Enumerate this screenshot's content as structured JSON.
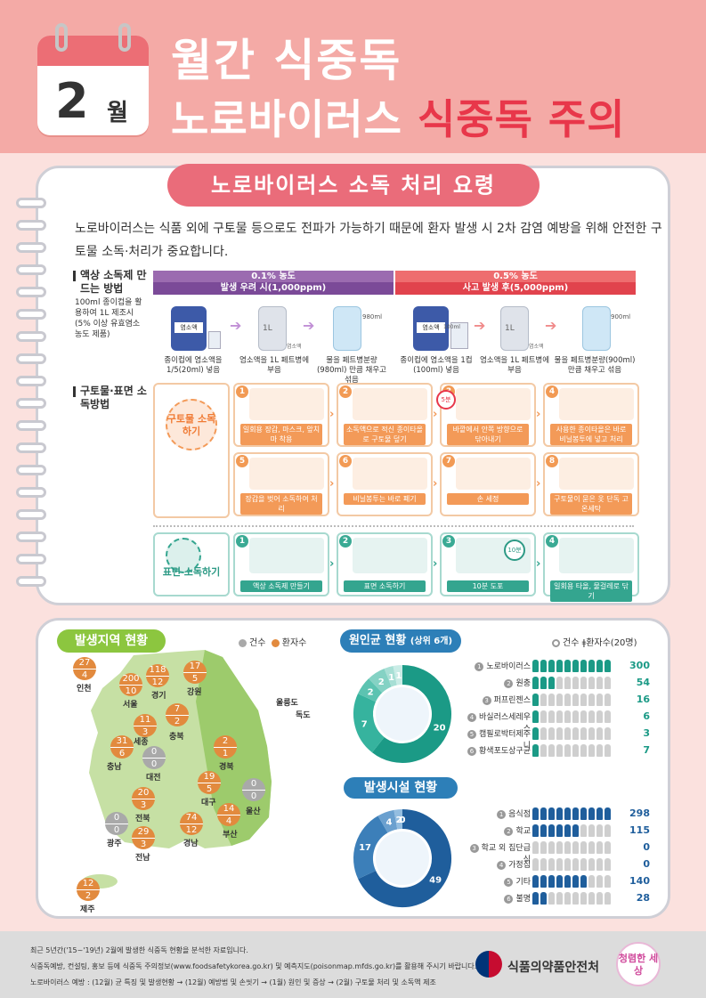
{
  "header": {
    "month_num": "2",
    "month_unit": "월",
    "title_line1": "월간 식중독",
    "title_line2_a": "노로바이러스 ",
    "title_line2_b": "식중독 주의"
  },
  "banner": "노로바이러스 소독 처리 요령",
  "intro": "노로바이러스는 식품 외에 구토물 등으로도 전파가 가능하기 때문에 환자 발생 시 2차 감염 예방을 위해 안전한 구토물 소독·처리가 중요합니다.",
  "liquid": {
    "title": "액상 소독제 만드는 방법",
    "note": "100ml 종이컵을 활용하여 1L 제조시 (5% 이상 유효염소 농도 제품)",
    "left_conc": "0.1% 농도",
    "left_use": "발생 우려 시(1,000ppm)",
    "right_conc": "0.5% 농도",
    "right_use": "사고 발생 후(5,000ppm)",
    "bottle_label": "염소액",
    "left_steps": [
      "종이컵에 염소액을 1/5(20ml) 넣음",
      "염소액을 1L 페트병에 부음",
      "물을 페트병분량(980ml) 만큼 채우고 섞음"
    ],
    "right_steps": [
      "종이컵에 염소액을 1컵(100ml) 넣음",
      "염소액을 1L 페트병에 부음",
      "물을 페트병분량(900ml) 만큼 채우고 섞음"
    ],
    "left_ml": "980ml",
    "right_ml": "900ml",
    "cup_ml": "100ml",
    "liter": "1L",
    "small_label": "염소액"
  },
  "surface": {
    "title": "구토물·표면 소독방법",
    "vomit_group": "구토물 소독하기",
    "vomit_steps": [
      {
        "n": "1",
        "label": "일회용 장갑, 마스크, 앞치마 착용"
      },
      {
        "n": "2",
        "label": "소독액으로 적신 종이타올로 구토물 덮기"
      },
      {
        "n": "3",
        "label": "바깥에서 안쪽 방향으로 닦아내기"
      },
      {
        "n": "4",
        "label": "사용한 종이타올은 바로 비닐봉투에 넣고 처리"
      },
      {
        "n": "5",
        "label": "장갑을 벗어 소독하여 처리"
      },
      {
        "n": "6",
        "label": "비닐봉투는 바로 폐기"
      },
      {
        "n": "7",
        "label": "손 세정"
      },
      {
        "n": "8",
        "label": "구토물이 묻은 옷 단독 고온세탁"
      }
    ],
    "timer5": "5분",
    "surface_group": "표면 소독하기",
    "surface_steps": [
      {
        "n": "1",
        "label": "액상 소독제 만들기"
      },
      {
        "n": "2",
        "label": "표면 소독하기"
      },
      {
        "n": "3",
        "label": "10분 도포"
      },
      {
        "n": "4",
        "label": "일회용 타올, 물걸레로 닦기"
      }
    ],
    "timer10": "10분"
  },
  "region": {
    "title": "발생지역 현황",
    "legend_cases": "건수",
    "legend_patients": "환자수",
    "markers": [
      {
        "name": "인천",
        "a": "27",
        "b": "4",
        "color": "orange"
      },
      {
        "name": "서울",
        "a": "200",
        "b": "10",
        "color": "orange"
      },
      {
        "name": "경기",
        "a": "118",
        "b": "12",
        "color": "orange"
      },
      {
        "name": "강원",
        "a": "17",
        "b": "5",
        "color": "orange"
      },
      {
        "name": "세종",
        "a": "11",
        "b": "3",
        "color": "orange"
      },
      {
        "name": "충북",
        "a": "7",
        "b": "2",
        "color": "orange"
      },
      {
        "name": "충남",
        "a": "31",
        "b": "6",
        "color": "orange"
      },
      {
        "name": "대전",
        "a": "0",
        "b": "0",
        "color": "gray"
      },
      {
        "name": "경북",
        "a": "2",
        "b": "1",
        "color": "orange"
      },
      {
        "name": "대구",
        "a": "19",
        "b": "5",
        "color": "orange"
      },
      {
        "name": "울산",
        "a": "0",
        "b": "0",
        "color": "gray"
      },
      {
        "name": "전북",
        "a": "20",
        "b": "3",
        "color": "orange"
      },
      {
        "name": "광주",
        "a": "0",
        "b": "0",
        "color": "gray"
      },
      {
        "name": "전남",
        "a": "29",
        "b": "3",
        "color": "orange"
      },
      {
        "name": "경남",
        "a": "74",
        "b": "12",
        "color": "orange"
      },
      {
        "name": "부산",
        "a": "14",
        "b": "4",
        "color": "orange"
      },
      {
        "name": "제주",
        "a": "12",
        "b": "2",
        "color": "orange"
      }
    ],
    "island1": "울릉도",
    "island2": "독도"
  },
  "pathogen": {
    "title": "원인균 현황",
    "subtitle": "(상위 6개)",
    "legend_cases": "건수",
    "legend_patients": "환자수(20명)",
    "ring_labels": [
      "20",
      "7",
      "2",
      "2",
      "1",
      "1"
    ],
    "ring_small": [
      "❶",
      "❷",
      "❸",
      "❹",
      "❺",
      "❻"
    ],
    "rows": [
      {
        "n": "1",
        "name": "노로바이러스",
        "value": "300",
        "filled": 10
      },
      {
        "n": "2",
        "name": "원충",
        "value": "54",
        "filled": 3
      },
      {
        "n": "3",
        "name": "퍼프린젠스",
        "value": "16",
        "filled": 1
      },
      {
        "n": "4",
        "name": "바실러스세레우스",
        "value": "6",
        "filled": 1
      },
      {
        "n": "5",
        "name": "캠필로박터제주니",
        "value": "3",
        "filled": 1
      },
      {
        "n": "6",
        "name": "황색포도상구균",
        "value": "7",
        "filled": 1
      }
    ]
  },
  "facility": {
    "title": "발생시설 현황",
    "ring_labels": [
      "49",
      "17",
      "4",
      "2",
      "0",
      "0"
    ],
    "rows": [
      {
        "n": "1",
        "name": "음식점",
        "value": "298",
        "filled": 10
      },
      {
        "n": "2",
        "name": "학교",
        "value": "115",
        "filled": 6
      },
      {
        "n": "3",
        "name": "학교 외 집단급식",
        "value": "0",
        "filled": 0
      },
      {
        "n": "4",
        "name": "가정집",
        "value": "0",
        "filled": 0
      },
      {
        "n": "5",
        "name": "기타",
        "value": "140",
        "filled": 7
      },
      {
        "n": "6",
        "name": "불명",
        "value": "28",
        "filled": 2
      }
    ]
  },
  "footer": {
    "notes": [
      "최근 5년간('15~'19년) 2월에 발생한 식중독 현황을 분석한 자료입니다.",
      "식중독예방, 컨설팅, 홍보 등에 식중독 주의정보(www.foodsafetykorea.go.kr) 및 예측지도(poisonmap.mfds.go.kr)를 활용해 주시기 바랍니다.",
      "노로바이러스 예방 : (12월) 균 특징 및 발생현황 → (12월) 예방법 및 손씻기 → (1월) 원인 및 증상 → (2월) 구토물 처리 및 소독액 제조"
    ],
    "agency": "식품의약품안전처",
    "slogan": "청렴한 세상"
  },
  "colors": {
    "header_bg": "#f4aaa6",
    "accent_red": "#e8374a",
    "banner": "#ea6c7a",
    "purple": "#9b6bb0",
    "orange": "#f39a58",
    "teal": "#1b9a86",
    "blue": "#1f5e9c",
    "green": "#8cc63f"
  }
}
